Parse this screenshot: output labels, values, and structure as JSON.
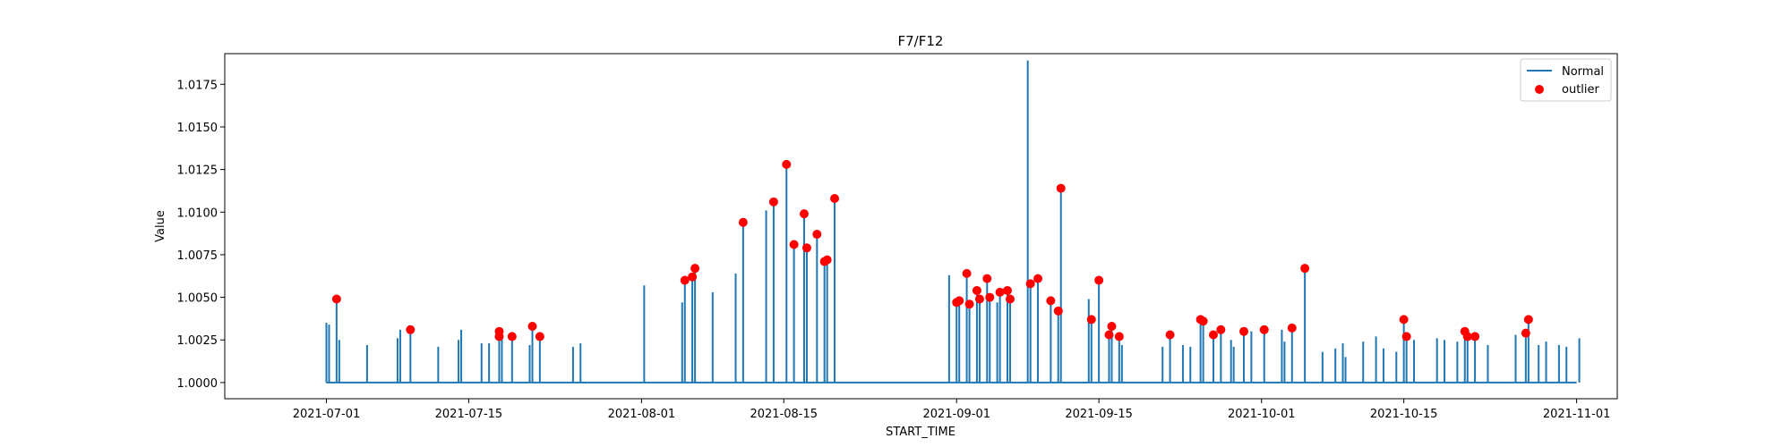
{
  "chart_data": {
    "type": "line",
    "title": "F7/F12",
    "xlabel": "START_TIME",
    "ylabel": "Value",
    "xlim": [
      "2021-06-21",
      "2021-11-05"
    ],
    "ylim": [
      0.99905,
      1.0193
    ],
    "grid": false,
    "legend_position": "top-right",
    "xticks": [
      "2021-07-01",
      "2021-07-15",
      "2021-08-01",
      "2021-08-15",
      "2021-09-01",
      "2021-09-15",
      "2021-10-01",
      "2021-10-15",
      "2021-11-01"
    ],
    "yticks": [
      "1.0000",
      "1.0025",
      "1.0050",
      "1.0075",
      "1.0100",
      "1.0125",
      "1.0150",
      "1.0175"
    ],
    "baseline": 1.0,
    "series": [
      {
        "name": "Normal",
        "kind": "line",
        "color": "#1f77b4",
        "start": "2021-07-01",
        "end": "2021-11-01",
        "spikes": [
          [
            "2021-07-01",
            1.0035
          ],
          [
            "2021-07-01",
            1.0034
          ],
          [
            "2021-07-02",
            1.0049
          ],
          [
            "2021-07-02",
            1.0025
          ],
          [
            "2021-07-05",
            1.0022
          ],
          [
            "2021-07-08",
            1.0031
          ],
          [
            "2021-07-08",
            1.0026
          ],
          [
            "2021-07-09",
            1.0031
          ],
          [
            "2021-07-12",
            1.0021
          ],
          [
            "2021-07-14",
            1.0031
          ],
          [
            "2021-07-14",
            1.0025
          ],
          [
            "2021-07-16",
            1.0023
          ],
          [
            "2021-07-17",
            1.0023
          ],
          [
            "2021-07-18",
            1.0029
          ],
          [
            "2021-07-18",
            1.0027
          ],
          [
            "2021-07-19",
            1.0027
          ],
          [
            "2021-07-21",
            1.0022
          ],
          [
            "2021-07-21",
            1.0033
          ],
          [
            "2021-07-22",
            1.0027
          ],
          [
            "2021-07-25",
            1.0021
          ],
          [
            "2021-07-26",
            1.0023
          ],
          [
            "2021-08-01",
            1.0057
          ],
          [
            "2021-08-05",
            1.0047
          ],
          [
            "2021-08-05",
            1.006
          ],
          [
            "2021-08-06",
            1.0062
          ],
          [
            "2021-08-06",
            1.0067
          ],
          [
            "2021-08-08",
            1.0053
          ],
          [
            "2021-08-10",
            1.0064
          ],
          [
            "2021-08-11",
            1.0094
          ],
          [
            "2021-08-13",
            1.0101
          ],
          [
            "2021-08-14",
            1.0106
          ],
          [
            "2021-08-15",
            1.0128
          ],
          [
            "2021-08-16",
            1.0081
          ],
          [
            "2021-08-17",
            1.0079
          ],
          [
            "2021-08-17",
            1.0099
          ],
          [
            "2021-08-18",
            1.0087
          ],
          [
            "2021-08-19",
            1.0071
          ],
          [
            "2021-08-19",
            1.0072
          ],
          [
            "2021-08-20",
            1.0108
          ],
          [
            "2021-08-31",
            1.0063
          ],
          [
            "2021-09-01",
            1.0047
          ],
          [
            "2021-09-01",
            1.0048
          ],
          [
            "2021-09-02",
            1.0064
          ],
          [
            "2021-09-02",
            1.0046
          ],
          [
            "2021-09-03",
            1.0054
          ],
          [
            "2021-09-03",
            1.0049
          ],
          [
            "2021-09-04",
            1.0061
          ],
          [
            "2021-09-04",
            1.005
          ],
          [
            "2021-09-05",
            1.0047
          ],
          [
            "2021-09-05",
            1.0053
          ],
          [
            "2021-09-06",
            1.0054
          ],
          [
            "2021-09-06",
            1.0049
          ],
          [
            "2021-09-08",
            1.0189
          ],
          [
            "2021-09-08",
            1.0058
          ],
          [
            "2021-09-09",
            1.0061
          ],
          [
            "2021-09-10",
            1.0048
          ],
          [
            "2021-09-11",
            1.0042
          ],
          [
            "2021-09-11",
            1.0114
          ],
          [
            "2021-09-14",
            1.0049
          ],
          [
            "2021-09-14",
            1.0037
          ],
          [
            "2021-09-15",
            1.006
          ],
          [
            "2021-09-16",
            1.0033
          ],
          [
            "2021-09-16",
            1.0028
          ],
          [
            "2021-09-17",
            1.0022
          ],
          [
            "2021-09-17",
            1.0027
          ],
          [
            "2021-09-21",
            1.0021
          ],
          [
            "2021-09-22",
            1.0028
          ],
          [
            "2021-09-23",
            1.0022
          ],
          [
            "2021-09-24",
            1.0021
          ],
          [
            "2021-09-25",
            1.0036
          ],
          [
            "2021-09-25",
            1.0037
          ],
          [
            "2021-09-26",
            1.0028
          ],
          [
            "2021-09-27",
            1.0031
          ],
          [
            "2021-09-28",
            1.0021
          ],
          [
            "2021-09-28",
            1.0025
          ],
          [
            "2021-09-29",
            1.003
          ],
          [
            "2021-09-30",
            1.003
          ],
          [
            "2021-10-01",
            1.0031
          ],
          [
            "2021-10-03",
            1.0031
          ],
          [
            "2021-10-03",
            1.0024
          ],
          [
            "2021-10-04",
            1.0032
          ],
          [
            "2021-10-05",
            1.0067
          ],
          [
            "2021-10-07",
            1.0018
          ],
          [
            "2021-10-08",
            1.002
          ],
          [
            "2021-10-09",
            1.0023
          ],
          [
            "2021-10-09",
            1.0015
          ],
          [
            "2021-10-11",
            1.0024
          ],
          [
            "2021-10-12",
            1.0027
          ],
          [
            "2021-10-13",
            1.002
          ],
          [
            "2021-10-14",
            1.0018
          ],
          [
            "2021-10-15",
            1.0037
          ],
          [
            "2021-10-15",
            1.0027
          ],
          [
            "2021-10-16",
            1.0025
          ],
          [
            "2021-10-18",
            1.0026
          ],
          [
            "2021-10-19",
            1.0025
          ],
          [
            "2021-10-20",
            1.0024
          ],
          [
            "2021-10-21",
            1.003
          ],
          [
            "2021-10-21",
            1.0027
          ],
          [
            "2021-10-22",
            1.0027
          ],
          [
            "2021-10-23",
            1.0022
          ],
          [
            "2021-10-26",
            1.0028
          ],
          [
            "2021-10-27",
            1.0037
          ],
          [
            "2021-10-27",
            1.0029
          ],
          [
            "2021-10-28",
            1.0022
          ],
          [
            "2021-10-29",
            1.0024
          ],
          [
            "2021-10-30",
            1.0022
          ],
          [
            "2021-10-31",
            1.0021
          ],
          [
            "2021-11-01",
            1.0026
          ]
        ]
      },
      {
        "name": "outlier",
        "kind": "scatter",
        "color": "#ff0000",
        "points": [
          [
            "2021-07-02",
            1.0049
          ],
          [
            "2021-07-09",
            1.0031
          ],
          [
            "2021-07-18",
            1.003
          ],
          [
            "2021-07-18",
            1.0027
          ],
          [
            "2021-07-19",
            1.0027
          ],
          [
            "2021-07-21",
            1.0033
          ],
          [
            "2021-07-22",
            1.0027
          ],
          [
            "2021-08-05",
            1.006
          ],
          [
            "2021-08-06",
            1.0062
          ],
          [
            "2021-08-06",
            1.0067
          ],
          [
            "2021-08-11",
            1.0094
          ],
          [
            "2021-08-14",
            1.0106
          ],
          [
            "2021-08-15",
            1.0128
          ],
          [
            "2021-08-16",
            1.0081
          ],
          [
            "2021-08-17",
            1.0079
          ],
          [
            "2021-08-17",
            1.0099
          ],
          [
            "2021-08-18",
            1.0087
          ],
          [
            "2021-08-19",
            1.0071
          ],
          [
            "2021-08-19",
            1.0072
          ],
          [
            "2021-08-20",
            1.0108
          ],
          [
            "2021-09-01",
            1.0047
          ],
          [
            "2021-09-01",
            1.0048
          ],
          [
            "2021-09-02",
            1.0064
          ],
          [
            "2021-09-02",
            1.0046
          ],
          [
            "2021-09-03",
            1.0054
          ],
          [
            "2021-09-03",
            1.0049
          ],
          [
            "2021-09-04",
            1.0061
          ],
          [
            "2021-09-04",
            1.005
          ],
          [
            "2021-09-05",
            1.0053
          ],
          [
            "2021-09-06",
            1.0054
          ],
          [
            "2021-09-06",
            1.0049
          ],
          [
            "2021-09-08",
            1.0058
          ],
          [
            "2021-09-09",
            1.0061
          ],
          [
            "2021-09-10",
            1.0048
          ],
          [
            "2021-09-11",
            1.0042
          ],
          [
            "2021-09-11",
            1.0114
          ],
          [
            "2021-09-14",
            1.0037
          ],
          [
            "2021-09-15",
            1.006
          ],
          [
            "2021-09-16",
            1.0033
          ],
          [
            "2021-09-16",
            1.0028
          ],
          [
            "2021-09-17",
            1.0027
          ],
          [
            "2021-09-22",
            1.0028
          ],
          [
            "2021-09-25",
            1.0036
          ],
          [
            "2021-09-25",
            1.0037
          ],
          [
            "2021-09-26",
            1.0028
          ],
          [
            "2021-09-27",
            1.0031
          ],
          [
            "2021-09-29",
            1.003
          ],
          [
            "2021-10-01",
            1.0031
          ],
          [
            "2021-10-04",
            1.0032
          ],
          [
            "2021-10-05",
            1.0067
          ],
          [
            "2021-10-15",
            1.0037
          ],
          [
            "2021-10-15",
            1.0027
          ],
          [
            "2021-10-21",
            1.003
          ],
          [
            "2021-10-21",
            1.0027
          ],
          [
            "2021-10-22",
            1.0027
          ],
          [
            "2021-10-27",
            1.0037
          ],
          [
            "2021-10-27",
            1.0029
          ]
        ]
      }
    ]
  }
}
